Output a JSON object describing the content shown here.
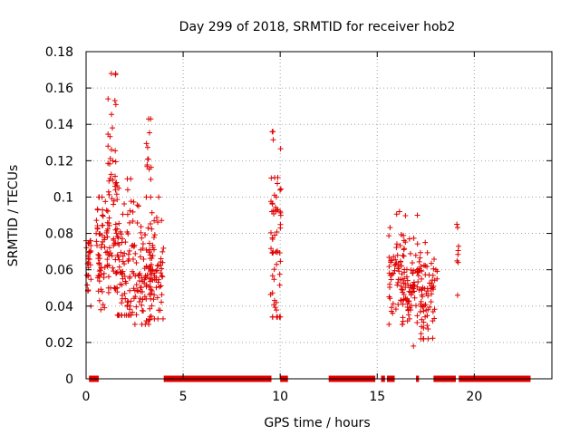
{
  "chart_data": {
    "type": "scatter",
    "title": "Day 299 of 2018, SRMTID for receiver hob2",
    "xlabel": "GPS time / hours",
    "ylabel": "SRMTID / TECUs",
    "xlim": [
      0,
      24
    ],
    "ylim": [
      0,
      0.18
    ],
    "xticks": [
      0,
      5,
      10,
      15,
      20
    ],
    "xtick_labels": [
      "0",
      "5",
      "10",
      "15",
      "20"
    ],
    "yticks": [
      0,
      0.02,
      0.04,
      0.06,
      0.08,
      0.1,
      0.12,
      0.14,
      0.16,
      0.18
    ],
    "ytick_labels": [
      "0",
      "0.02",
      "0.04",
      "0.06",
      "0.08",
      "0.1",
      "0.12",
      "0.14",
      "0.16",
      "0.18"
    ],
    "grid": true,
    "marker": "+",
    "color": "#e00000",
    "zero_value_segments": [
      [
        0.15,
        0.65
      ],
      [
        4.0,
        9.55
      ],
      [
        10.0,
        10.4
      ],
      [
        12.5,
        14.9
      ],
      [
        15.2,
        15.4
      ],
      [
        15.5,
        15.9
      ],
      [
        17.0,
        17.15
      ],
      [
        17.9,
        19.05
      ],
      [
        19.2,
        22.9
      ]
    ],
    "clusters": [
      {
        "x_range": [
          0.0,
          0.25
        ],
        "count": 28,
        "y_min": 0.04,
        "y_max": 0.076,
        "y_mean": 0.063,
        "y_sd": 0.009
      },
      {
        "x_range": [
          0.5,
          1.2
        ],
        "count": 70,
        "y_min": 0.038,
        "y_max": 0.1,
        "y_mean": 0.07,
        "y_sd": 0.017
      },
      {
        "x_range": [
          1.1,
          1.6
        ],
        "count": 55,
        "y_min": 0.05,
        "y_max": 0.168,
        "y_mean": 0.1,
        "y_sd": 0.032
      },
      {
        "x_range": [
          1.5,
          2.5
        ],
        "count": 90,
        "y_min": 0.035,
        "y_max": 0.11,
        "y_mean": 0.062,
        "y_sd": 0.018
      },
      {
        "x_range": [
          2.4,
          3.4
        ],
        "count": 95,
        "y_min": 0.03,
        "y_max": 0.1,
        "y_mean": 0.055,
        "y_sd": 0.015
      },
      {
        "x_range": [
          3.1,
          3.45
        ],
        "count": 14,
        "y_min": 0.1,
        "y_max": 0.143,
        "y_mean": 0.125,
        "y_sd": 0.013
      },
      {
        "x_range": [
          3.3,
          4.0
        ],
        "count": 55,
        "y_min": 0.033,
        "y_max": 0.1,
        "y_mean": 0.061,
        "y_sd": 0.014
      },
      {
        "x_range": [
          9.5,
          10.05
        ],
        "count": 60,
        "y_min": 0.034,
        "y_max": 0.136,
        "y_mean": 0.078,
        "y_sd": 0.026
      },
      {
        "x_range": [
          15.6,
          16.4
        ],
        "count": 65,
        "y_min": 0.03,
        "y_max": 0.092,
        "y_mean": 0.056,
        "y_sd": 0.013
      },
      {
        "x_range": [
          16.3,
          17.3
        ],
        "count": 80,
        "y_min": 0.018,
        "y_max": 0.09,
        "y_mean": 0.05,
        "y_sd": 0.015
      },
      {
        "x_range": [
          17.2,
          18.0
        ],
        "count": 60,
        "y_min": 0.022,
        "y_max": 0.075,
        "y_mean": 0.043,
        "y_sd": 0.011
      },
      {
        "x_range": [
          18.0,
          18.1
        ],
        "count": 3,
        "y_min": 0.055,
        "y_max": 0.06,
        "y_mean": 0.057,
        "y_sd": 0.002
      },
      {
        "x_range": [
          19.1,
          19.2
        ],
        "count": 8,
        "y_min": 0.046,
        "y_max": 0.085,
        "y_mean": 0.068,
        "y_sd": 0.012
      }
    ]
  }
}
